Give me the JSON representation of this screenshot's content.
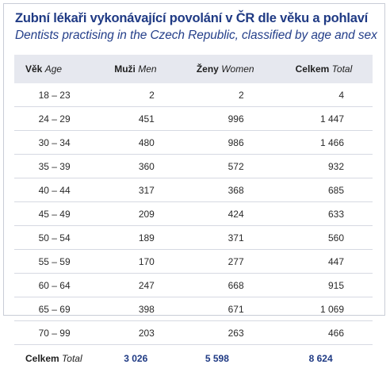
{
  "title": "Zubní lékaři vykonávající povolání v ČR dle věku a pohlaví",
  "subtitle": "Dentists practising in the Czech Republic, classified by age and sex",
  "header": {
    "age_cz": "Věk",
    "age_en": "Age",
    "men_cz": "Muži",
    "men_en": "Men",
    "women_cz": "Ženy",
    "women_en": "Women",
    "total_cz": "Celkem",
    "total_en": "Total"
  },
  "rows": [
    {
      "age": "18 – 23",
      "men": "2",
      "women": "2",
      "total": "4"
    },
    {
      "age": "24 – 29",
      "men": "451",
      "women": "996",
      "total": "1 447"
    },
    {
      "age": "30 – 34",
      "men": "480",
      "women": "986",
      "total": "1 466"
    },
    {
      "age": "35 – 39",
      "men": "360",
      "women": "572",
      "total": "932"
    },
    {
      "age": "40 – 44",
      "men": "317",
      "women": "368",
      "total": "685"
    },
    {
      "age": "45 – 49",
      "men": "209",
      "women": "424",
      "total": "633"
    },
    {
      "age": "50 – 54",
      "men": "189",
      "women": "371",
      "total": "560"
    },
    {
      "age": "55 – 59",
      "men": "170",
      "women": "277",
      "total": "447"
    },
    {
      "age": "60 – 64",
      "men": "247",
      "women": "668",
      "total": "915"
    },
    {
      "age": "65 – 69",
      "men": "398",
      "women": "671",
      "total": "1 069"
    },
    {
      "age": "70 – 99",
      "men": "203",
      "women": "263",
      "total": "466"
    }
  ],
  "footer": {
    "label_cz": "Celkem",
    "label_en": "Total",
    "men": "3 026",
    "women": "5 598",
    "total": "8 624"
  },
  "colors": {
    "title": "#1f3a84",
    "header_bg": "#e6e8ef",
    "row_border": "#d6d9e2"
  }
}
